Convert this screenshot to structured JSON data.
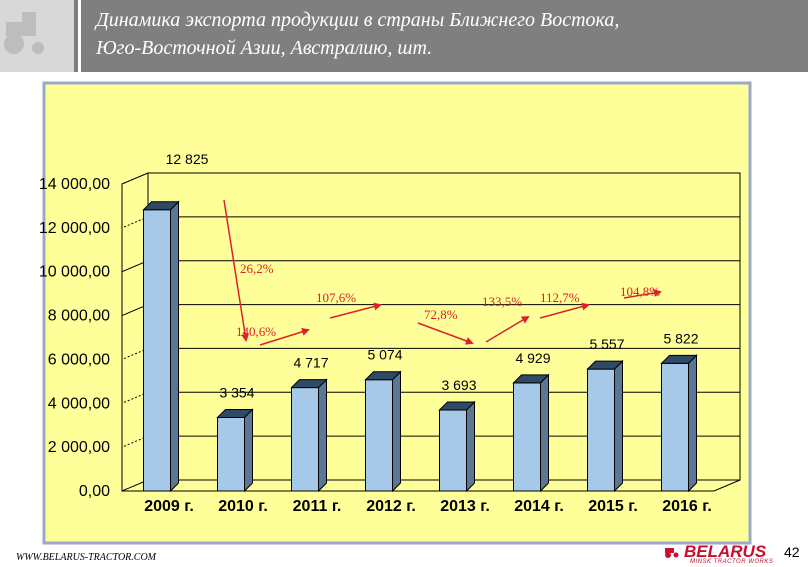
{
  "header": {
    "title_line1": "Динамика экспорта продукции в страны Ближнего Востока,",
    "title_line2": "Юго-Восточной Азии, Австралию, шт."
  },
  "colors": {
    "header_bg": "#7f7f7f",
    "plot_bg": "#ffff99",
    "bar_fill": "#a6c9ea",
    "arrow": "#e0202c",
    "brand": "#c8102e"
  },
  "chart_data": {
    "type": "bar",
    "categories": [
      "2009 г.",
      "2010 г.",
      "2011 г.",
      "2012 г.",
      "2013 г.",
      "2014 г.",
      "2015 г.",
      "2016 г."
    ],
    "values": [
      12825,
      3354,
      4717,
      5074,
      3693,
      4929,
      5557,
      5822
    ],
    "value_labels": [
      "12 825",
      "3 354",
      "4 717",
      "5 074",
      "3 693",
      "4 929",
      "5 557",
      "5 822"
    ],
    "y_tick_labels": [
      "0,00",
      "2 000,00",
      "4 000,00",
      "6 000,00",
      "8 000,00",
      "10 000,00",
      "12 000,00",
      "14 000,00"
    ],
    "y_ticks": [
      0,
      2000,
      4000,
      6000,
      8000,
      10000,
      12000,
      14000
    ],
    "ylim": [
      0,
      14000
    ],
    "grid": "horizontal",
    "percent_annotations": [
      "26,2%",
      "140,6%",
      "107,6%",
      "72,8%",
      "133,5%",
      "112,7%",
      "104,8%"
    ]
  },
  "footer": {
    "url": "WWW.BELARUS-TRACTOR.COM",
    "brand_name": "BELARUS",
    "brand_sub": "MINSK TRACTOR WORKS",
    "page_number": "42"
  }
}
